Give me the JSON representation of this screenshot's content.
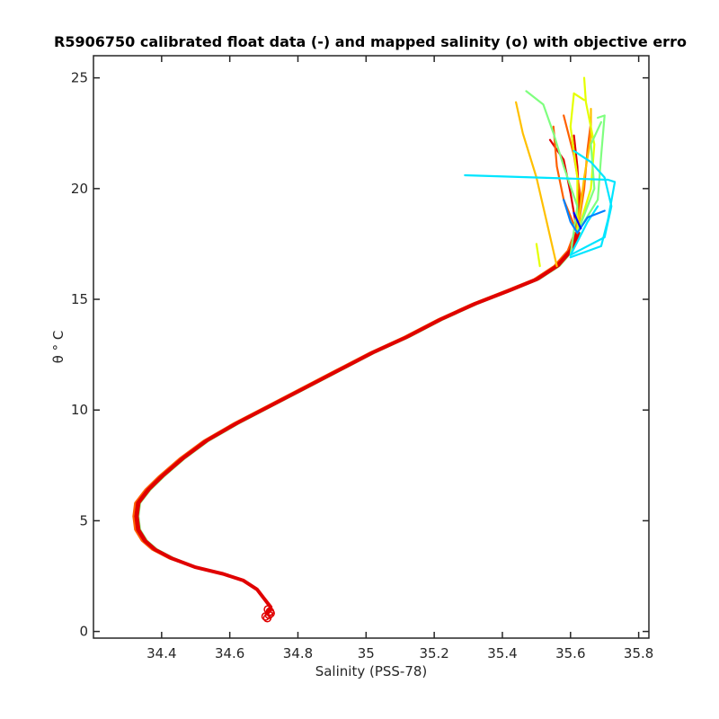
{
  "chart_data": {
    "type": "line",
    "title": "R5906750 calibrated float data (-) and mapped salinity (o) with objective erro",
    "xlabel": "Salinity (PSS-78)",
    "ylabel": "θ ° C",
    "xlim": [
      34.2,
      35.83
    ],
    "ylim": [
      -0.3,
      26
    ],
    "xticks": [
      34.4,
      34.6,
      34.8,
      35,
      35.2,
      35.4,
      35.6,
      35.8
    ],
    "xtick_labels": [
      "34.4",
      "34.6",
      "34.8",
      "35",
      "35.2",
      "35.4",
      "35.6",
      "35.8"
    ],
    "yticks": [
      0,
      5,
      10,
      15,
      20,
      25
    ],
    "ytick_labels": [
      "0",
      "5",
      "10",
      "15",
      "20",
      "25"
    ],
    "grid": false,
    "colormap": [
      "#0000ff",
      "#0080ff",
      "#00e5ff",
      "#7fff7f",
      "#e5ff00",
      "#ffc000",
      "#ff6000",
      "#e00000"
    ],
    "deep_profile": [
      [
        34.71,
        0.8
      ],
      [
        34.72,
        1.1
      ],
      [
        34.7,
        1.5
      ],
      [
        34.68,
        1.9
      ],
      [
        34.64,
        2.3
      ],
      [
        34.58,
        2.6
      ],
      [
        34.5,
        2.9
      ],
      [
        34.43,
        3.3
      ],
      [
        34.38,
        3.7
      ],
      [
        34.35,
        4.1
      ],
      [
        34.33,
        4.6
      ],
      [
        34.325,
        5.2
      ],
      [
        34.33,
        5.8
      ],
      [
        34.36,
        6.4
      ],
      [
        34.4,
        7.0
      ],
      [
        34.46,
        7.8
      ],
      [
        34.53,
        8.6
      ],
      [
        34.62,
        9.4
      ],
      [
        34.72,
        10.2
      ],
      [
        34.82,
        11.0
      ],
      [
        34.92,
        11.8
      ],
      [
        35.02,
        12.6
      ],
      [
        35.12,
        13.3
      ],
      [
        35.22,
        14.1
      ],
      [
        35.32,
        14.8
      ],
      [
        35.42,
        15.4
      ],
      [
        35.5,
        15.9
      ],
      [
        35.56,
        16.5
      ],
      [
        35.6,
        17.2
      ],
      [
        35.62,
        18.0
      ]
    ],
    "upper_profiles": [
      {
        "color": "#e00000",
        "points": [
          [
            35.62,
            18.0
          ],
          [
            35.625,
            19.5
          ],
          [
            35.62,
            21.0
          ],
          [
            35.61,
            22.4
          ]
        ]
      },
      {
        "color": "#e00000",
        "points": [
          [
            35.62,
            18.0
          ],
          [
            35.6,
            19.8
          ],
          [
            35.58,
            21.3
          ],
          [
            35.54,
            22.2
          ]
        ]
      },
      {
        "color": "#ff6000",
        "points": [
          [
            35.62,
            18.0
          ],
          [
            35.63,
            19.6
          ],
          [
            35.61,
            21.5
          ],
          [
            35.58,
            23.3
          ]
        ]
      },
      {
        "color": "#ff6000",
        "points": [
          [
            35.62,
            18.0
          ],
          [
            35.64,
            20.0
          ],
          [
            35.65,
            21.8
          ],
          [
            35.66,
            23.0
          ]
        ]
      },
      {
        "color": "#ff6000",
        "points": [
          [
            35.62,
            18.0
          ],
          [
            35.58,
            19.5
          ],
          [
            35.56,
            21.0
          ],
          [
            35.55,
            22.8
          ]
        ]
      },
      {
        "color": "#ffc000",
        "points": [
          [
            35.56,
            16.5
          ],
          [
            35.53,
            18.5
          ],
          [
            35.5,
            20.5
          ],
          [
            35.46,
            22.5
          ],
          [
            35.44,
            23.9
          ]
        ]
      },
      {
        "color": "#ffc000",
        "points": [
          [
            35.62,
            18.0
          ],
          [
            35.64,
            20.5
          ],
          [
            35.66,
            22.3
          ],
          [
            35.66,
            23.6
          ]
        ]
      },
      {
        "color": "#e5ff00",
        "points": [
          [
            35.62,
            18.0
          ],
          [
            35.66,
            20.0
          ],
          [
            35.67,
            22.0
          ],
          [
            35.645,
            23.9
          ],
          [
            35.64,
            25.0
          ]
        ]
      },
      {
        "color": "#e5ff00",
        "points": [
          [
            35.62,
            18.0
          ],
          [
            35.62,
            20.5
          ],
          [
            35.6,
            22.8
          ],
          [
            35.61,
            24.3
          ],
          [
            35.64,
            24.0
          ]
        ]
      },
      {
        "color": "#e5ff00",
        "points": [
          [
            35.51,
            16.5
          ],
          [
            35.5,
            17.5
          ]
        ]
      },
      {
        "color": "#7fff7f",
        "points": [
          [
            35.6,
            17.0
          ],
          [
            35.62,
            19.2
          ],
          [
            35.58,
            21.0
          ],
          [
            35.55,
            22.5
          ],
          [
            35.52,
            23.8
          ],
          [
            35.47,
            24.4
          ]
        ]
      },
      {
        "color": "#7fff7f",
        "points": [
          [
            35.62,
            18.0
          ],
          [
            35.68,
            19.5
          ],
          [
            35.69,
            21.5
          ],
          [
            35.7,
            23.3
          ],
          [
            35.68,
            23.2
          ]
        ]
      },
      {
        "color": "#7fff7f",
        "points": [
          [
            35.62,
            18.0
          ],
          [
            35.67,
            20.0
          ],
          [
            35.66,
            22.0
          ],
          [
            35.69,
            23.0
          ]
        ]
      },
      {
        "color": "#00e5ff",
        "points": [
          [
            35.29,
            20.6
          ],
          [
            35.71,
            20.4
          ],
          [
            35.73,
            20.3
          ],
          [
            35.71,
            18.6
          ],
          [
            35.69,
            17.4
          ],
          [
            35.6,
            16.9
          ]
        ]
      },
      {
        "color": "#00e5ff",
        "points": [
          [
            35.6,
            17.0
          ],
          [
            35.7,
            17.8
          ],
          [
            35.72,
            19.2
          ],
          [
            35.7,
            20.5
          ],
          [
            35.66,
            21.2
          ],
          [
            35.61,
            21.7
          ]
        ]
      },
      {
        "color": "#00e5ff",
        "points": [
          [
            35.6,
            17.0
          ],
          [
            35.65,
            18.5
          ],
          [
            35.68,
            19.2
          ]
        ]
      },
      {
        "color": "#0080ff",
        "points": [
          [
            35.62,
            18.0
          ],
          [
            35.6,
            18.5
          ],
          [
            35.58,
            19.5
          ]
        ]
      },
      {
        "color": "#0080ff",
        "points": [
          [
            35.62,
            18.0
          ],
          [
            35.65,
            18.7
          ],
          [
            35.7,
            19.0
          ]
        ]
      },
      {
        "color": "#0000ff",
        "points": [
          [
            35.63,
            18.2
          ],
          [
            35.61,
            18.9
          ]
        ]
      }
    ],
    "mapped_points": [
      [
        34.71,
        0.6
      ],
      [
        34.715,
        0.75
      ],
      [
        34.718,
        0.9
      ],
      [
        34.712,
        1.0
      ],
      [
        34.705,
        0.68
      ],
      [
        34.72,
        0.82
      ]
    ]
  }
}
